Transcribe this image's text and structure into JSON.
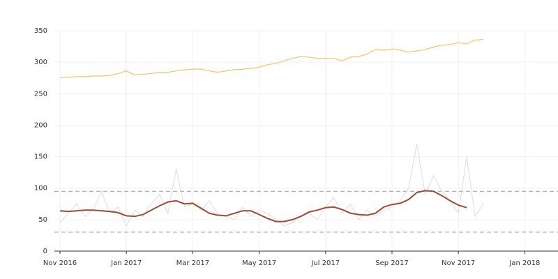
{
  "chart_data": {
    "type": "line",
    "x": [
      "2016-11",
      "2016-11",
      "2016-11",
      "2016-11",
      "2016-12",
      "2016-12",
      "2016-12",
      "2016-12",
      "2017-01",
      "2017-01",
      "2017-01",
      "2017-01",
      "2017-02",
      "2017-02",
      "2017-02",
      "2017-02",
      "2017-03",
      "2017-03",
      "2017-03",
      "2017-03",
      "2017-04",
      "2017-04",
      "2017-04",
      "2017-04",
      "2017-05",
      "2017-05",
      "2017-05",
      "2017-05",
      "2017-06",
      "2017-06",
      "2017-06",
      "2017-06",
      "2017-07",
      "2017-07",
      "2017-07",
      "2017-07",
      "2017-08",
      "2017-08",
      "2017-08",
      "2017-08",
      "2017-09",
      "2017-09",
      "2017-09",
      "2017-09",
      "2017-10",
      "2017-10",
      "2017-10",
      "2017-10",
      "2017-11",
      "2017-11",
      "2017-11",
      "2017-11"
    ],
    "series": [
      {
        "color": "#dcdcdc",
        "width": 1,
        "values": [
          45,
          60,
          75,
          55,
          65,
          95,
          60,
          70,
          40,
          65,
          55,
          75,
          90,
          60,
          130,
          70,
          75,
          65,
          80,
          60,
          55,
          50,
          70,
          55,
          65,
          60,
          50,
          40,
          45,
          55,
          60,
          50,
          70,
          85,
          60,
          75,
          50,
          65,
          55,
          65,
          70,
          80,
          100,
          170,
          90,
          120,
          95,
          80,
          60,
          150,
          55,
          75
        ]
      },
      {
        "color": "#f5c26b",
        "width": 1.2,
        "values": [
          275,
          276,
          277,
          277,
          278,
          278,
          279,
          282,
          286,
          280,
          281,
          282,
          284,
          284,
          286,
          288,
          289,
          289,
          286,
          284,
          286,
          288,
          289,
          290,
          292,
          296,
          298,
          302,
          306,
          309,
          308,
          306,
          306,
          306,
          302,
          308,
          309,
          313,
          320,
          319,
          321,
          319,
          316,
          318,
          320,
          324,
          327,
          328,
          331,
          329,
          335,
          336
        ]
      },
      {
        "color": "#9c4a35",
        "width": 2,
        "values": [
          64,
          63,
          64,
          65,
          65,
          64,
          63,
          61,
          56,
          55,
          58,
          65,
          72,
          78,
          80,
          75,
          76,
          68,
          60,
          57,
          56,
          60,
          64,
          64,
          58,
          52,
          47,
          47,
          50,
          55,
          62,
          65,
          69,
          70,
          66,
          60,
          58,
          57,
          60,
          70,
          74,
          76,
          82,
          93,
          96,
          95,
          88,
          80,
          73,
          69,
          null,
          null
        ]
      }
    ],
    "reference_lines": [
      95,
      30
    ],
    "xlim": [
      "2016-11",
      "2018-02"
    ],
    "xticks": [
      {
        "value": "2016-11",
        "label": "Nov 2016"
      },
      {
        "value": "2017-01",
        "label": "Jan 2017"
      },
      {
        "value": "2017-03",
        "label": "Mar 2017"
      },
      {
        "value": "2017-05",
        "label": "May 2017"
      },
      {
        "value": "2017-07",
        "label": "Jul 2017"
      },
      {
        "value": "2017-09",
        "label": "Sep 2017"
      },
      {
        "value": "2017-11",
        "label": "Nov 2017"
      },
      {
        "value": "2018-01",
        "label": "Jan 2018"
      }
    ],
    "ylim": [
      0,
      350
    ],
    "yticks": [
      0,
      50,
      100,
      150,
      200,
      250,
      300,
      350
    ],
    "grid": true
  }
}
